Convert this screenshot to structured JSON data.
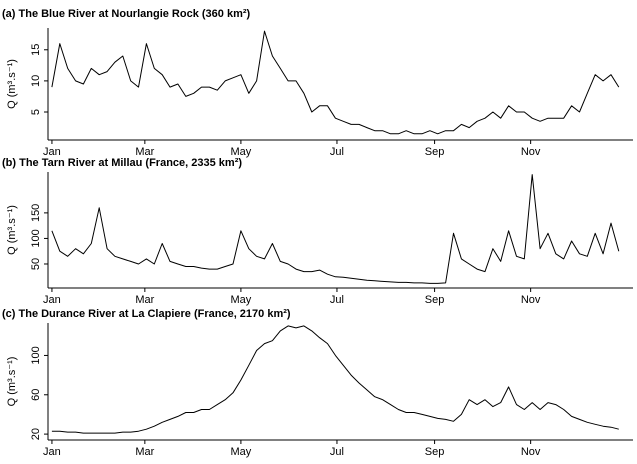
{
  "chart_data": [
    {
      "type": "line",
      "title": "(a) The Blue River at Nourlangie Rock (360 km²)",
      "y_label": "Q (m³.s⁻¹)",
      "color": "#000000",
      "x": [
        1,
        6,
        11,
        16,
        21,
        26,
        31,
        36,
        41,
        46,
        51,
        56,
        61,
        66,
        71,
        76,
        81,
        86,
        91,
        96,
        101,
        106,
        111,
        116,
        121,
        126,
        131,
        136,
        141,
        146,
        151,
        156,
        161,
        166,
        171,
        176,
        181,
        186,
        191,
        196,
        201,
        206,
        211,
        216,
        221,
        226,
        231,
        236,
        241,
        246,
        251,
        256,
        261,
        266,
        271,
        276,
        281,
        286,
        291,
        296,
        301,
        306,
        311,
        316,
        321,
        326,
        331,
        336,
        341,
        346,
        351,
        356,
        361
      ],
      "values": [
        9,
        16,
        12,
        10,
        9.5,
        12,
        11,
        11.5,
        13,
        14,
        10,
        9,
        16,
        12,
        11,
        9,
        9.5,
        7.5,
        8,
        9,
        9,
        8.5,
        10,
        10.5,
        11,
        8,
        10,
        18,
        14,
        12,
        10,
        10,
        8,
        5,
        6,
        6,
        4,
        3.5,
        3,
        3,
        2.5,
        2,
        2,
        1.5,
        1.5,
        2,
        1.5,
        1.5,
        2,
        1.5,
        2,
        2,
        3,
        2.5,
        3.5,
        4,
        5,
        4,
        6,
        5,
        5,
        4,
        3.5,
        4,
        4,
        4,
        6,
        5,
        8,
        11,
        10,
        11,
        9
      ],
      "xlim": [
        -1.5,
        370
      ],
      "xticks": [
        {
          "value": 1,
          "label": "Jan"
        },
        {
          "value": 60,
          "label": "Mar"
        },
        {
          "value": 121,
          "label": "May"
        },
        {
          "value": 182,
          "label": "Jul"
        },
        {
          "value": 244,
          "label": "Sep"
        },
        {
          "value": 305,
          "label": "Nov"
        }
      ],
      "ylim": [
        0.5,
        18.5
      ],
      "yticks": [
        5,
        10,
        15
      ]
    },
    {
      "type": "line",
      "title": "(b) The Tarn River at Millau (France, 2335 km²)",
      "y_label": "Q (m³.s⁻¹)",
      "color": "#000000",
      "x": [
        1,
        6,
        11,
        16,
        21,
        26,
        31,
        36,
        41,
        46,
        51,
        56,
        61,
        66,
        71,
        76,
        81,
        86,
        91,
        96,
        101,
        106,
        111,
        116,
        121,
        126,
        131,
        136,
        141,
        146,
        151,
        156,
        161,
        166,
        171,
        176,
        181,
        186,
        191,
        196,
        201,
        206,
        211,
        216,
        221,
        226,
        231,
        236,
        241,
        246,
        251,
        256,
        261,
        266,
        271,
        276,
        281,
        286,
        291,
        296,
        301,
        306,
        311,
        316,
        321,
        326,
        331,
        336,
        341,
        346,
        351,
        356,
        361
      ],
      "values": [
        115,
        75,
        65,
        80,
        70,
        90,
        160,
        80,
        65,
        60,
        55,
        50,
        60,
        50,
        90,
        55,
        50,
        45,
        45,
        42,
        40,
        40,
        45,
        50,
        115,
        80,
        65,
        60,
        90,
        55,
        50,
        40,
        35,
        35,
        38,
        30,
        25,
        24,
        22,
        20,
        18,
        17,
        16,
        15,
        14,
        14,
        13,
        13,
        12,
        12,
        13,
        110,
        60,
        50,
        40,
        35,
        80,
        55,
        115,
        65,
        60,
        225,
        80,
        110,
        70,
        60,
        95,
        70,
        65,
        110,
        70,
        130,
        75
      ],
      "xlim": [
        -1.5,
        370
      ],
      "xticks": [
        {
          "value": 1,
          "label": "Jan"
        },
        {
          "value": 60,
          "label": "Mar"
        },
        {
          "value": 121,
          "label": "May"
        },
        {
          "value": 182,
          "label": "Jul"
        },
        {
          "value": 244,
          "label": "Sep"
        },
        {
          "value": 305,
          "label": "Nov"
        }
      ],
      "ylim": [
        3,
        230
      ],
      "yticks": [
        50,
        100,
        150
      ]
    },
    {
      "type": "line",
      "title": "(c) The Durance River at La Clapiere (France, 2170 km²)",
      "y_label": "Q (m³.s⁻¹)",
      "color": "#000000",
      "x": [
        1,
        6,
        11,
        16,
        21,
        26,
        31,
        36,
        41,
        46,
        51,
        56,
        61,
        66,
        71,
        76,
        81,
        86,
        91,
        96,
        101,
        106,
        111,
        116,
        121,
        126,
        131,
        136,
        141,
        146,
        151,
        156,
        161,
        166,
        171,
        176,
        181,
        186,
        191,
        196,
        201,
        206,
        211,
        216,
        221,
        226,
        231,
        236,
        241,
        246,
        251,
        256,
        261,
        266,
        271,
        276,
        281,
        286,
        291,
        296,
        301,
        306,
        311,
        316,
        321,
        326,
        331,
        336,
        341,
        346,
        351,
        356,
        361
      ],
      "values": [
        23,
        23,
        22,
        22,
        21,
        21,
        21,
        21,
        21,
        22,
        22,
        23,
        25,
        28,
        32,
        35,
        38,
        42,
        42,
        45,
        45,
        50,
        55,
        62,
        75,
        90,
        105,
        112,
        115,
        125,
        130,
        128,
        130,
        125,
        118,
        112,
        100,
        90,
        80,
        72,
        65,
        58,
        55,
        50,
        45,
        42,
        42,
        40,
        38,
        36,
        35,
        33,
        40,
        55,
        50,
        55,
        48,
        52,
        68,
        50,
        45,
        52,
        45,
        52,
        50,
        45,
        38,
        35,
        32,
        30,
        28,
        27,
        25
      ],
      "xlim": [
        -1.5,
        370
      ],
      "xticks": [
        {
          "value": 1,
          "label": "Jan"
        },
        {
          "value": 60,
          "label": "Mar"
        },
        {
          "value": 121,
          "label": "May"
        },
        {
          "value": 182,
          "label": "Jul"
        },
        {
          "value": 244,
          "label": "Sep"
        },
        {
          "value": 305,
          "label": "Nov"
        }
      ],
      "ylim": [
        14,
        133
      ],
      "yticks": [
        20,
        60,
        100
      ]
    }
  ]
}
